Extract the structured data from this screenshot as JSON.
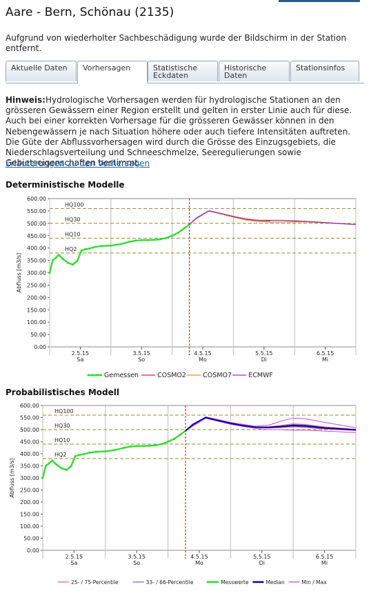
{
  "page": {
    "title": "Aare - Bern, Schönau (2135)",
    "notice": "Aufgrund von wiederholter Sachbeschädigung wurde der Bildschirm in der Station entfernt."
  },
  "tabs": [
    {
      "label": "Aktuelle Daten",
      "active": false
    },
    {
      "label": "Vorhersagen",
      "active": true
    },
    {
      "label": "Statistische Eckdaten",
      "active": false
    },
    {
      "label": "Historische Daten",
      "active": false
    },
    {
      "label": "Stationsinfos",
      "active": false
    }
  ],
  "hint": {
    "label": "Hinweis:",
    "text": "Hydrologische Vorhersagen werden für hydrologische Stationen an den grösseren Gewässern einer Region erstellt und gelten in erster Linie auch für diese. Auch bei einer korrekten Vorhersage für die grösseren Gewässer können in den Nebengewässern je nach Situation höhere oder auch tiefere Intensitäten auftreten. Die Güte der Abflussvorhersagen wird durch die Grösse des Einzugsgebiets, die Niederschlagsverteilung und Schneeschmelze, Seeregulierungen sowie Gebietseigenschaften bestimmt.",
    "link": "Erläuterungen zu den Vorhersagen"
  },
  "sections": {
    "det_title": "Deterministische Modelle",
    "prob_title": "Probabilistisches Modell"
  },
  "chart_data": [
    {
      "type": "line",
      "title": "Deterministische Modelle",
      "ylabel": "Abfluss [m3/s]",
      "ylim": [
        0,
        600
      ],
      "yticks": [
        "0.00",
        "50.00",
        "100.00",
        "150.00",
        "200.00",
        "250.00",
        "300.00",
        "350.00",
        "400.00",
        "450.00",
        "500.00",
        "550.00",
        "600.00"
      ],
      "x_day_ticks": [
        {
          "date": "2.5.15",
          "day": "Sa",
          "x": 1.5
        },
        {
          "date": "3.5.15",
          "day": "So",
          "x": 2.5
        },
        {
          "date": "4.5.15",
          "day": "Mo",
          "x": 3.5
        },
        {
          "date": "5.5.15",
          "day": "Di",
          "x": 4.5
        },
        {
          "date": "6.5.15",
          "day": "Mi",
          "x": 5.5
        }
      ],
      "xlim": [
        1.0,
        6.0
      ],
      "forecast_start": 3.28,
      "thresholds": [
        {
          "label": "HQ100",
          "value": 560
        },
        {
          "label": "HQ30",
          "value": 500
        },
        {
          "label": "HQ10",
          "value": 440
        },
        {
          "label": "HQ2",
          "value": 380
        }
      ],
      "series": [
        {
          "name": "Gemessen",
          "color": "#33dd33",
          "x": [
            1.0,
            1.05,
            1.1,
            1.15,
            1.22,
            1.3,
            1.38,
            1.45,
            1.52,
            1.58,
            1.65,
            1.75,
            1.85,
            2.0,
            2.15,
            2.3,
            2.4,
            2.5,
            2.6,
            2.7,
            2.8,
            2.9,
            3.0,
            3.1,
            3.2,
            3.28
          ],
          "y": [
            300,
            350,
            360,
            372,
            355,
            340,
            333,
            348,
            390,
            395,
            398,
            405,
            408,
            410,
            415,
            425,
            430,
            432,
            432,
            433,
            435,
            440,
            450,
            462,
            480,
            495
          ]
        },
        {
          "name": "COSMO2",
          "color": "#dd2222",
          "x": [
            3.28,
            3.4,
            3.6,
            3.8,
            4.0,
            4.2,
            4.4,
            4.6
          ],
          "y": [
            495,
            520,
            550,
            538,
            525,
            515,
            512,
            510
          ]
        },
        {
          "name": "COSMO7",
          "color": "#ff8811",
          "x": [
            3.28,
            3.4,
            3.6,
            3.8,
            4.0,
            4.2,
            4.4,
            4.6,
            4.8,
            5.0,
            5.2,
            5.5,
            6.0
          ],
          "y": [
            495,
            520,
            550,
            538,
            525,
            514,
            508,
            505,
            505,
            506,
            505,
            502,
            495
          ]
        },
        {
          "name": "ECMWF",
          "color": "#8833cc",
          "x": [
            3.28,
            3.4,
            3.6,
            3.8,
            4.0,
            4.2,
            4.4,
            4.6,
            4.8,
            5.0,
            5.2,
            5.5,
            6.0
          ],
          "y": [
            495,
            522,
            551,
            540,
            528,
            518,
            512,
            512,
            512,
            510,
            508,
            503,
            495
          ]
        }
      ],
      "legend": "bottom"
    },
    {
      "type": "line",
      "title": "Probabilistisches Modell",
      "ylabel": "Abfluss [m3/s]",
      "ylim": [
        0,
        600
      ],
      "yticks": [
        "0.00",
        "50.00",
        "100.00",
        "150.00",
        "200.00",
        "250.00",
        "300.00",
        "350.00",
        "400.00",
        "450.00",
        "500.00",
        "550.00",
        "600.00"
      ],
      "x_day_ticks": [
        {
          "date": "2.5.15",
          "day": "Sa",
          "x": 1.5
        },
        {
          "date": "3.5.15",
          "day": "So",
          "x": 2.5
        },
        {
          "date": "4.5.15",
          "day": "Mo",
          "x": 3.5
        },
        {
          "date": "5.5.15",
          "day": "Di",
          "x": 4.5
        },
        {
          "date": "6.5.15",
          "day": "Mi",
          "x": 5.5
        }
      ],
      "xlim": [
        1.0,
        6.0
      ],
      "forecast_start": 3.28,
      "thresholds": [
        {
          "label": "HQ100",
          "value": 560
        },
        {
          "label": "HQ30",
          "value": 500
        },
        {
          "label": "HQ10",
          "value": 440
        },
        {
          "label": "HQ2",
          "value": 380
        }
      ],
      "series": [
        {
          "name": "25- / 75-Percentile",
          "color": "#ee5555",
          "x": [
            3.28,
            3.6,
            4.0,
            4.4,
            4.6,
            4.8,
            5.0,
            5.2,
            5.5,
            6.0
          ],
          "upper": [
            495,
            552,
            528,
            512,
            512,
            518,
            525,
            522,
            512,
            502
          ],
          "lower": [
            495,
            549,
            524,
            508,
            506,
            508,
            510,
            508,
            502,
            496
          ]
        },
        {
          "name": "33- / 66-Percentile",
          "color": "#6666ee",
          "x": [
            3.28,
            3.6,
            4.0,
            4.4,
            4.6,
            4.8,
            5.0,
            5.2,
            5.5,
            6.0
          ],
          "upper": [
            495,
            551,
            527,
            511,
            511,
            516,
            522,
            519,
            510,
            501
          ],
          "lower": [
            495,
            550,
            525,
            509,
            508,
            510,
            513,
            511,
            504,
            497
          ]
        },
        {
          "name": "Messwerte",
          "color": "#33dd33",
          "x": [
            1.0,
            1.05,
            1.1,
            1.15,
            1.22,
            1.3,
            1.38,
            1.45,
            1.52,
            1.58,
            1.65,
            1.75,
            1.85,
            2.0,
            2.15,
            2.3,
            2.4,
            2.5,
            2.6,
            2.7,
            2.8,
            2.9,
            3.0,
            3.1,
            3.2,
            3.28
          ],
          "y": [
            300,
            350,
            360,
            372,
            355,
            340,
            333,
            348,
            390,
            395,
            398,
            405,
            408,
            410,
            415,
            425,
            430,
            432,
            432,
            433,
            435,
            440,
            450,
            462,
            480,
            495
          ]
        },
        {
          "name": "Median",
          "color": "#0000aa",
          "x": [
            3.28,
            3.4,
            3.6,
            3.8,
            4.0,
            4.2,
            4.4,
            4.6,
            4.8,
            5.0,
            5.2,
            5.5,
            6.0
          ],
          "y": [
            495,
            522,
            550,
            538,
            526,
            516,
            510,
            509,
            512,
            517,
            515,
            507,
            499
          ]
        },
        {
          "name": "Min / Max",
          "color": "#cc44cc",
          "x": [
            3.28,
            3.6,
            4.0,
            4.4,
            4.6,
            4.8,
            5.0,
            5.2,
            5.5,
            6.0
          ],
          "upper": [
            495,
            553,
            530,
            514,
            518,
            535,
            548,
            545,
            530,
            508
          ],
          "lower": [
            495,
            547,
            522,
            505,
            500,
            500,
            498,
            498,
            494,
            488
          ]
        }
      ],
      "legend": "bottom"
    }
  ]
}
